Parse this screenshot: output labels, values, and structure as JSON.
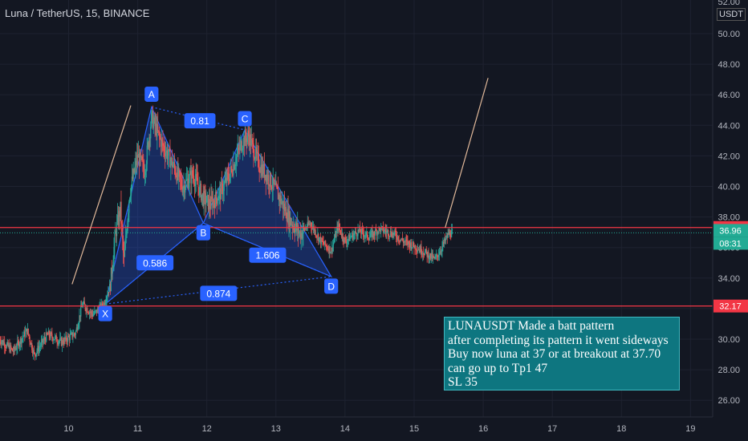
{
  "header": {
    "title": "Luna / TetherUS, 15, BINANCE",
    "axis_unit": "USDT"
  },
  "chart_data": {
    "type": "candlestick",
    "symbol": "Luna / TetherUS",
    "interval": "15",
    "exchange": "BINANCE",
    "y_axis": {
      "ticks": [
        26,
        28,
        30,
        32,
        34,
        36,
        38,
        40,
        42,
        44,
        46,
        48,
        50
      ],
      "tick_labels": [
        "26.00",
        "28.00",
        "30.00",
        "32.00",
        "34.00",
        "36.00",
        "38.00",
        "40.00",
        "42.00",
        "44.00",
        "46.00",
        "48.00",
        "50.00"
      ],
      "top_label": "52.00",
      "unit": "USDT",
      "range": [
        25,
        52
      ]
    },
    "x_axis": {
      "ticks": [
        10,
        11,
        12,
        13,
        14,
        15,
        16,
        17,
        18,
        19
      ],
      "tick_labels": [
        "10",
        "11",
        "12",
        "13",
        "14",
        "15",
        "16",
        "17",
        "18",
        "19"
      ],
      "range": [
        9,
        19.4
      ]
    },
    "price_path": [
      [
        9.0,
        30.0
      ],
      [
        9.2,
        29.2
      ],
      [
        9.4,
        30.6
      ],
      [
        9.5,
        29.0
      ],
      [
        9.7,
        30.3
      ],
      [
        9.9,
        29.8
      ],
      [
        10.1,
        30.4
      ],
      [
        10.2,
        32.3
      ],
      [
        10.35,
        31.6
      ],
      [
        10.5,
        32.2
      ],
      [
        10.6,
        33.5
      ],
      [
        10.68,
        37.0
      ],
      [
        10.75,
        38.5
      ],
      [
        10.8,
        35.0
      ],
      [
        10.88,
        39.5
      ],
      [
        11.0,
        42.0
      ],
      [
        11.1,
        41.0
      ],
      [
        11.2,
        44.5
      ],
      [
        11.35,
        42.8
      ],
      [
        11.5,
        41.5
      ],
      [
        11.65,
        40.0
      ],
      [
        11.8,
        40.8
      ],
      [
        11.95,
        39.2
      ],
      [
        12.05,
        38.8
      ],
      [
        12.2,
        39.6
      ],
      [
        12.35,
        41.0
      ],
      [
        12.5,
        42.8
      ],
      [
        12.6,
        43.4
      ],
      [
        12.75,
        41.5
      ],
      [
        12.9,
        40.5
      ],
      [
        13.05,
        39.3
      ],
      [
        13.2,
        37.8
      ],
      [
        13.35,
        36.9
      ],
      [
        13.5,
        37.6
      ],
      [
        13.65,
        36.4
      ],
      [
        13.8,
        35.8
      ],
      [
        13.9,
        37.4
      ],
      [
        14.0,
        36.4
      ],
      [
        14.2,
        37.1
      ],
      [
        14.35,
        36.7
      ],
      [
        14.5,
        37.2
      ],
      [
        14.7,
        36.9
      ],
      [
        14.85,
        36.4
      ],
      [
        15.0,
        36.1
      ],
      [
        15.15,
        35.7
      ],
      [
        15.3,
        35.2
      ],
      [
        15.4,
        36.0
      ],
      [
        15.5,
        36.9
      ],
      [
        15.56,
        36.96
      ]
    ],
    "price_lines": [
      {
        "label": "37.31",
        "value": 37.31,
        "color": "#f23645"
      },
      {
        "label": "36.96",
        "value": 36.96,
        "color": "#22ab94"
      },
      {
        "label": "08:31",
        "value": 36.4,
        "color": "#22ab94"
      },
      {
        "label": "32.17",
        "value": 32.17,
        "color": "#f23645"
      }
    ],
    "pattern_points": [
      {
        "label": "X",
        "x": 10.53,
        "y": 32.3
      },
      {
        "label": "A",
        "x": 11.2,
        "y": 45.2
      },
      {
        "label": "B",
        "x": 11.95,
        "y": 37.6
      },
      {
        "label": "C",
        "x": 12.55,
        "y": 43.7
      },
      {
        "label": "D",
        "x": 13.8,
        "y": 34.1
      }
    ],
    "pattern_ratios": [
      {
        "label": "0.81",
        "x": 11.9,
        "y": 44.3
      },
      {
        "label": "0.586",
        "x": 11.25,
        "y": 35.0
      },
      {
        "label": "1.606",
        "x": 12.88,
        "y": 35.5
      },
      {
        "label": "0.874",
        "x": 12.17,
        "y": 33.0
      }
    ],
    "trend_lines": [
      {
        "x1": 10.05,
        "y1": 33.6,
        "x2": 10.9,
        "y2": 45.3,
        "color": "#e0b899"
      },
      {
        "x1": 15.45,
        "y1": 37.3,
        "x2": 16.07,
        "y2": 47.1,
        "color": "#e0b899"
      }
    ],
    "colors": {
      "background": "#131722",
      "up": "#26a69a",
      "down": "#ef5350",
      "pattern_fill": "#2962ff",
      "label_bg": "#2962ff"
    }
  },
  "note": {
    "lines": [
      "LUNAUSDT Made a batt pattern",
      "after completing its pattern it went sideways",
      "Buy now luna at 37 or at breakout at 37.70",
      "can go up to Tp1 47",
      "SL 35"
    ]
  }
}
